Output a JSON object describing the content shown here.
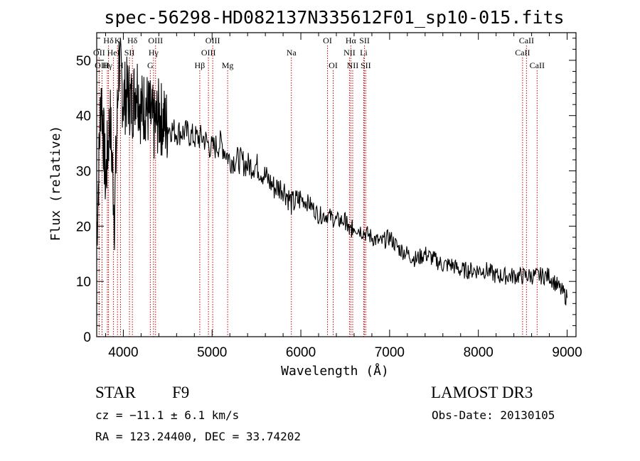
{
  "chart_data": {
    "type": "line",
    "title": "spec-56298-HD082137N335612F01_sp10-015.fits",
    "xlabel": "Wavelength (Å)",
    "ylabel": "Flux (relative)",
    "xlim": [
      3700,
      9100
    ],
    "ylim": [
      0,
      55
    ],
    "x_ticks": [
      4000,
      5000,
      6000,
      7000,
      8000,
      9000
    ],
    "y_ticks": [
      0,
      10,
      20,
      30,
      40,
      50
    ],
    "series": [
      {
        "name": "flux",
        "x": [
          3700,
          3750,
          3800,
          3850,
          3900,
          3950,
          4000,
          4050,
          4100,
          4150,
          4200,
          4250,
          4300,
          4350,
          4400,
          4450,
          4500,
          4600,
          4700,
          4800,
          4900,
          5000,
          5100,
          5200,
          5300,
          5400,
          5500,
          5600,
          5700,
          5800,
          5900,
          6000,
          6100,
          6200,
          6300,
          6400,
          6500,
          6550,
          6600,
          6700,
          6800,
          6900,
          7000,
          7100,
          7200,
          7300,
          7400,
          7500,
          7600,
          7700,
          7800,
          7900,
          8000,
          8100,
          8200,
          8300,
          8400,
          8500,
          8600,
          8700,
          8800,
          8900,
          9000
        ],
        "y": [
          18,
          45,
          28,
          40,
          22,
          50,
          43,
          44,
          42,
          46,
          41,
          42,
          40,
          38,
          40,
          39,
          38,
          37,
          37,
          36,
          36,
          34,
          35,
          32,
          32,
          31,
          31,
          29,
          27,
          27,
          24,
          25,
          24,
          22,
          22,
          21,
          21,
          19,
          20,
          19,
          18,
          17,
          18,
          16,
          15,
          14,
          15,
          14,
          13,
          13,
          12,
          12,
          12,
          12,
          11,
          11,
          11,
          11,
          11,
          11,
          11,
          9,
          7
        ]
      }
    ],
    "line_markers": [
      {
        "label": "Hδ",
        "x": 3833,
        "row": 1
      },
      {
        "label": "OII",
        "x": 3727,
        "row": 2
      },
      {
        "label": "OIII",
        "x": 3760,
        "row": 3
      },
      {
        "label": "K",
        "x": 3934,
        "row": 1
      },
      {
        "label": "HeI",
        "x": 3889,
        "row": 2
      },
      {
        "label": "Hγ",
        "x": 3820,
        "row": 3
      },
      {
        "label": "SII",
        "x": 4069,
        "row": 2
      },
      {
        "label": "H",
        "x": 3968,
        "row": 3
      },
      {
        "label": "Hδ",
        "x": 4102,
        "row": 1
      },
      {
        "label": "OIII",
        "x": 4363,
        "row": 1
      },
      {
        "label": "Hγ",
        "x": 4340,
        "row": 2
      },
      {
        "label": "G",
        "x": 4304,
        "row": 3
      },
      {
        "label": "OIII",
        "x": 5007,
        "row": 1
      },
      {
        "label": "OIII",
        "x": 4959,
        "row": 2
      },
      {
        "label": "Hβ",
        "x": 4861,
        "row": 3
      },
      {
        "label": "Mg",
        "x": 5175,
        "row": 3
      },
      {
        "label": "Na",
        "x": 5893,
        "row": 2
      },
      {
        "label": "OI",
        "x": 6300,
        "row": 1
      },
      {
        "label": "OI",
        "x": 6364,
        "row": 3
      },
      {
        "label": "Hα",
        "x": 6563,
        "row": 1
      },
      {
        "label": "NII",
        "x": 6548,
        "row": 2
      },
      {
        "label": "NII",
        "x": 6584,
        "row": 3
      },
      {
        "label": "SII",
        "x": 6717,
        "row": 1
      },
      {
        "label": "Li",
        "x": 6708,
        "row": 2
      },
      {
        "label": "SII",
        "x": 6731,
        "row": 3
      },
      {
        "label": "CaII",
        "x": 8542,
        "row": 1
      },
      {
        "label": "CaII",
        "x": 8498,
        "row": 2
      },
      {
        "label": "CaII",
        "x": 8662,
        "row": 3
      }
    ]
  },
  "info": {
    "object_type": "STAR",
    "subclass": "F9",
    "survey": "LAMOST DR3",
    "cz": "cz = −11.1 ± 6.1 km/s",
    "obs_date": "Obs-Date: 20130105",
    "coords": "RA = 123.24400, DEC =  33.74202"
  },
  "colors": {
    "axes": "#000000",
    "spectrum": "#000000",
    "markers": "#cc0000"
  }
}
